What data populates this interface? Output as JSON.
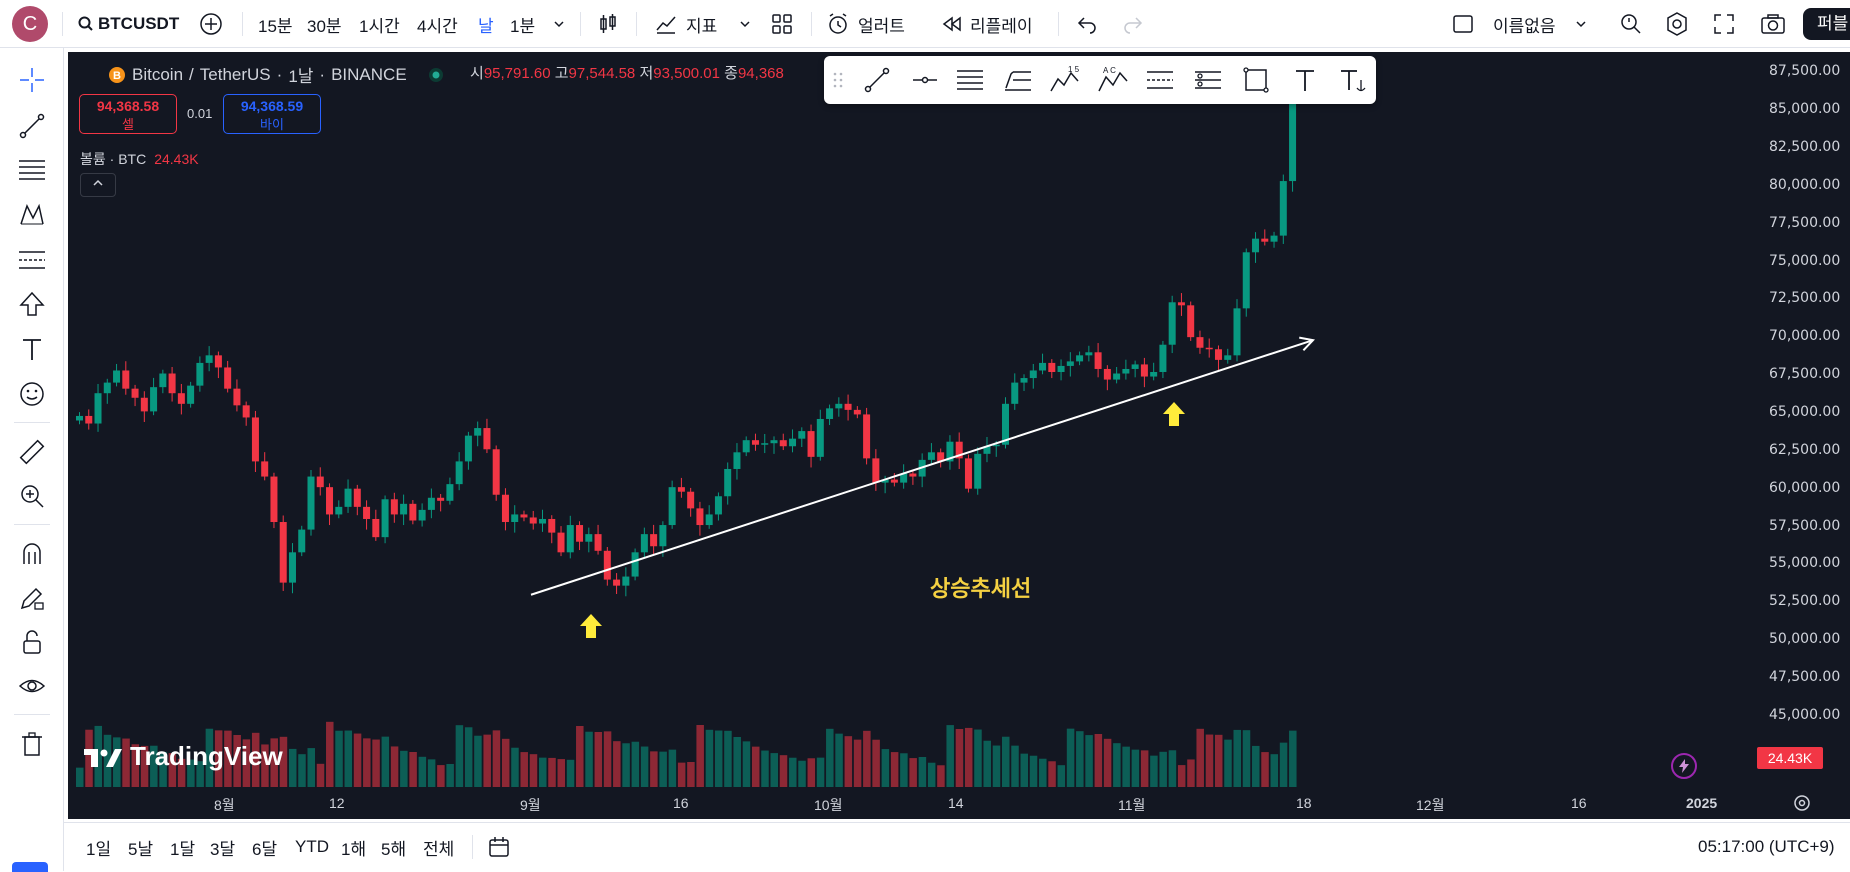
{
  "header": {
    "avatar_letter": "C",
    "symbol": "BTCUSDT",
    "intervals": [
      "15분",
      "30분",
      "1시간",
      "4시간",
      "날",
      "1분"
    ],
    "active_interval": "날",
    "indicators_label": "지표",
    "alert_label": "얼러트",
    "replay_label": "리플레이",
    "layout_name": "이름없음",
    "publish_label": "퍼블"
  },
  "legend": {
    "pair": "Bitcoin",
    "quote": "TetherUS",
    "timeframe": "1날",
    "exchange": "BINANCE",
    "open_label": "시",
    "open": "95,791.60",
    "high_label": "고",
    "high": "97,544.58",
    "low_label": "저",
    "low": "93,500.01",
    "close_label": "종",
    "close": "94,368",
    "sell_price": "94,368.58",
    "sell_label": "셀",
    "spread": "0.01",
    "buy_price": "94,368.59",
    "buy_label": "바이",
    "volume_label": "볼륨 · BTC",
    "volume_value": "24.43K"
  },
  "price_axis": [
    "87,500.00",
    "85,000.00",
    "82,500.00",
    "80,000.00",
    "77,500.00",
    "75,000.00",
    "72,500.00",
    "70,000.00",
    "67,500.00",
    "65,000.00",
    "62,500.00",
    "60,000.00",
    "57,500.00",
    "55,000.00",
    "52,500.00",
    "50,000.00",
    "47,500.00",
    "45,000.00"
  ],
  "volume_tag": "24.43K",
  "time_axis": [
    "8월",
    "12",
    "9월",
    "16",
    "10월",
    "14",
    "11월",
    "18",
    "12월",
    "16",
    "2025"
  ],
  "annotation": "상승추세선",
  "watermark": "TradingView",
  "bottom": {
    "ranges": [
      "1일",
      "5날",
      "1달",
      "3달",
      "6달",
      "YTD",
      "1해",
      "5해",
      "전체"
    ],
    "clock": "05:17:00 (UTC+9)"
  },
  "colors": {
    "up": "#089981",
    "down": "#f23645",
    "background": "#131722",
    "accent": "#2962ff",
    "annotation": "#f5d142"
  },
  "chart_data": {
    "type": "candlestick",
    "description_note": "BTCUSDT daily candles, approx Jul 2024 – Dec 2024 with ascending trendline",
    "y_unit": "USDT",
    "ylim": [
      44000,
      88500
    ],
    "closes": [
      65000,
      64500,
      66500,
      67200,
      68000,
      66800,
      66200,
      65300,
      66900,
      67800,
      66500,
      65800,
      67000,
      68500,
      69000,
      68200,
      66800,
      65700,
      64900,
      62000,
      61000,
      58000,
      54000,
      56000,
      57500,
      61000,
      60300,
      58500,
      59000,
      60200,
      59000,
      58200,
      57000,
      59500,
      58500,
      59200,
      58100,
      58800,
      59600,
      59400,
      60500,
      62000,
      63700,
      64200,
      62800,
      59800,
      58000,
      58500,
      58300,
      57900,
      58200,
      57300,
      56000,
      57800,
      56700,
      57200,
      56100,
      54200,
      53800,
      54400,
      56000,
      57200,
      56400,
      57800,
      60300,
      60000,
      58900,
      57800,
      58500,
      59700,
      61500,
      62600,
      63400,
      63100,
      63200,
      63400,
      63000,
      63500,
      64000,
      62300,
      64800,
      65500,
      65800,
      65400,
      65100,
      62200,
      60600,
      60800,
      60600,
      61200,
      61000,
      62100,
      62600,
      62000,
      63300,
      62200,
      60200,
      62500,
      63000,
      63100,
      65800,
      67200,
      67500,
      68000,
      68500,
      67900,
      68300,
      68600,
      69000,
      69200,
      68100,
      67400,
      67800,
      68100,
      68400,
      67600,
      67900,
      69700,
      72500,
      72300,
      70200,
      69500,
      69400,
      68700,
      69000,
      72100,
      75800,
      76700,
      76500,
      76900,
      80500,
      87400
    ],
    "trendline": {
      "start_price": 53200,
      "end_price": 70000
    },
    "markers": [
      "up-arrow-1",
      "up-arrow-2"
    ]
  }
}
